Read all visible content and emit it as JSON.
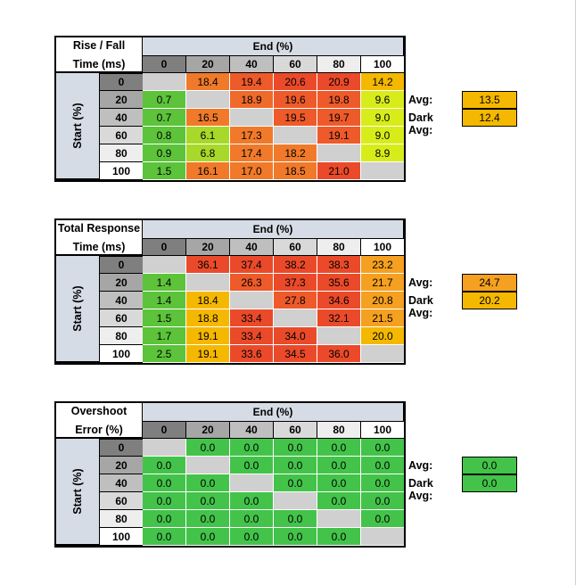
{
  "col_headers": [
    "0",
    "20",
    "40",
    "60",
    "80",
    "100"
  ],
  "row_headers": [
    "0",
    "20",
    "40",
    "60",
    "80",
    "100"
  ],
  "colors": {
    "header_0": "#7f7f7f",
    "header_20": "#a6a6a6",
    "header_40": "#bfbfbf",
    "header_60": "#d9d9d9",
    "header_80": "#eeeeee",
    "header_100": "#ffffff",
    "diagonal": "#d0d0d0",
    "band": "#d6dce5"
  },
  "chart_data": [
    {
      "type": "heatmap",
      "title_line1": "Rise / Fall",
      "title_line2": "Time (ms)",
      "xlabel": "End (%)",
      "ylabel": "Start (%)",
      "x": [
        "0",
        "20",
        "40",
        "60",
        "80",
        "100"
      ],
      "y": [
        "0",
        "20",
        "40",
        "60",
        "80",
        "100"
      ],
      "values": [
        [
          null,
          "18.4",
          "19.4",
          "20.6",
          "20.9",
          "14.2"
        ],
        [
          "0.7",
          null,
          "18.9",
          "19.6",
          "19.8",
          "9.6"
        ],
        [
          "0.7",
          "16.5",
          null,
          "19.5",
          "19.7",
          "9.0"
        ],
        [
          "0.8",
          "6.1",
          "17.3",
          null,
          "19.1",
          "9.0"
        ],
        [
          "0.9",
          "6.8",
          "17.4",
          "18.2",
          null,
          "8.9"
        ],
        [
          "1.5",
          "16.1",
          "17.0",
          "18.5",
          "21.0",
          null
        ]
      ],
      "colors": [
        [
          "#d0d0d0",
          "#f07a2a",
          "#ee5a2a",
          "#ea4a2a",
          "#ea4a2a",
          "#f5b800"
        ],
        [
          "#5cc33a",
          "#d0d0d0",
          "#f06a2a",
          "#ee5a2a",
          "#ee5a2a",
          "#d8ec1a"
        ],
        [
          "#5cc33a",
          "#f07a2a",
          "#d0d0d0",
          "#ee5a2a",
          "#ee5a2a",
          "#d8ec1a"
        ],
        [
          "#5cc33a",
          "#a8d82a",
          "#f07a2a",
          "#d0d0d0",
          "#ee5a2a",
          "#d8ec1a"
        ],
        [
          "#5cc33a",
          "#a8d82a",
          "#f07a2a",
          "#f07a2a",
          "#d0d0d0",
          "#d8ec1a"
        ],
        [
          "#5cc33a",
          "#f07a2a",
          "#f07a2a",
          "#f07a2a",
          "#ea4a2a",
          "#d0d0d0"
        ]
      ],
      "avg_label": "Avg:",
      "avg_value": "13.5",
      "avg_color": "#f5b800",
      "dark_avg_label": "Dark Avg:",
      "dark_avg_value": "12.4",
      "dark_avg_color": "#f5b800"
    },
    {
      "type": "heatmap",
      "title_line1": "Total Response",
      "title_line2": "Time (ms)",
      "xlabel": "End (%)",
      "ylabel": "Start (%)",
      "x": [
        "0",
        "20",
        "40",
        "60",
        "80",
        "100"
      ],
      "y": [
        "0",
        "20",
        "40",
        "60",
        "80",
        "100"
      ],
      "values": [
        [
          null,
          "36.1",
          "37.4",
          "38.2",
          "38.3",
          "23.2"
        ],
        [
          "1.4",
          null,
          "26.3",
          "37.3",
          "35.6",
          "21.7"
        ],
        [
          "1.4",
          "18.4",
          null,
          "27.8",
          "34.6",
          "20.8"
        ],
        [
          "1.5",
          "18.8",
          "33.4",
          null,
          "32.1",
          "21.5"
        ],
        [
          "1.7",
          "19.1",
          "33.4",
          "34.0",
          null,
          "20.0"
        ],
        [
          "2.5",
          "19.1",
          "33.6",
          "34.5",
          "36.0",
          null
        ]
      ],
      "colors": [
        [
          "#d0d0d0",
          "#ea4a2a",
          "#ea4a2a",
          "#ea4a2a",
          "#ea4a2a",
          "#f5a020"
        ],
        [
          "#5cc33a",
          "#d0d0d0",
          "#ee5a2a",
          "#ea4a2a",
          "#ea4a2a",
          "#f5a020"
        ],
        [
          "#5cc33a",
          "#f5b800",
          "#d0d0d0",
          "#ee5a2a",
          "#ea4a2a",
          "#f5a020"
        ],
        [
          "#5cc33a",
          "#f5b800",
          "#ea4a2a",
          "#d0d0d0",
          "#ea4a2a",
          "#f5a020"
        ],
        [
          "#5cc33a",
          "#f5b800",
          "#ea4a2a",
          "#ea4a2a",
          "#d0d0d0",
          "#f5b800"
        ],
        [
          "#5cc33a",
          "#f5b800",
          "#ea4a2a",
          "#ea4a2a",
          "#ea4a2a",
          "#d0d0d0"
        ]
      ],
      "avg_label": "Avg:",
      "avg_value": "24.7",
      "avg_color": "#f5a020",
      "dark_avg_label": "Dark Avg:",
      "dark_avg_value": "20.2",
      "dark_avg_color": "#f5b800"
    },
    {
      "type": "heatmap",
      "title_line1": "Overshoot",
      "title_line2": "Error (%)",
      "xlabel": "End (%)",
      "ylabel": "Start (%)",
      "x": [
        "0",
        "20",
        "40",
        "60",
        "80",
        "100"
      ],
      "y": [
        "0",
        "20",
        "40",
        "60",
        "80",
        "100"
      ],
      "values": [
        [
          null,
          "0.0",
          "0.0",
          "0.0",
          "0.0",
          "0.0"
        ],
        [
          "0.0",
          null,
          "0.0",
          "0.0",
          "0.0",
          "0.0"
        ],
        [
          "0.0",
          "0.0",
          null,
          "0.0",
          "0.0",
          "0.0"
        ],
        [
          "0.0",
          "0.0",
          "0.0",
          null,
          "0.0",
          "0.0"
        ],
        [
          "0.0",
          "0.0",
          "0.0",
          "0.0",
          null,
          "0.0"
        ],
        [
          "0.0",
          "0.0",
          "0.0",
          "0.0",
          "0.0",
          null
        ]
      ],
      "colors": [
        [
          "#d0d0d0",
          "#43c34a",
          "#43c34a",
          "#43c34a",
          "#43c34a",
          "#43c34a"
        ],
        [
          "#43c34a",
          "#d0d0d0",
          "#43c34a",
          "#43c34a",
          "#43c34a",
          "#43c34a"
        ],
        [
          "#43c34a",
          "#43c34a",
          "#d0d0d0",
          "#43c34a",
          "#43c34a",
          "#43c34a"
        ],
        [
          "#43c34a",
          "#43c34a",
          "#43c34a",
          "#d0d0d0",
          "#43c34a",
          "#43c34a"
        ],
        [
          "#43c34a",
          "#43c34a",
          "#43c34a",
          "#43c34a",
          "#d0d0d0",
          "#43c34a"
        ],
        [
          "#43c34a",
          "#43c34a",
          "#43c34a",
          "#43c34a",
          "#43c34a",
          "#d0d0d0"
        ]
      ],
      "avg_label": "Avg:",
      "avg_value": "0.0",
      "avg_color": "#43c34a",
      "dark_avg_label": "Dark Avg:",
      "dark_avg_value": "0.0",
      "dark_avg_color": "#43c34a"
    }
  ]
}
